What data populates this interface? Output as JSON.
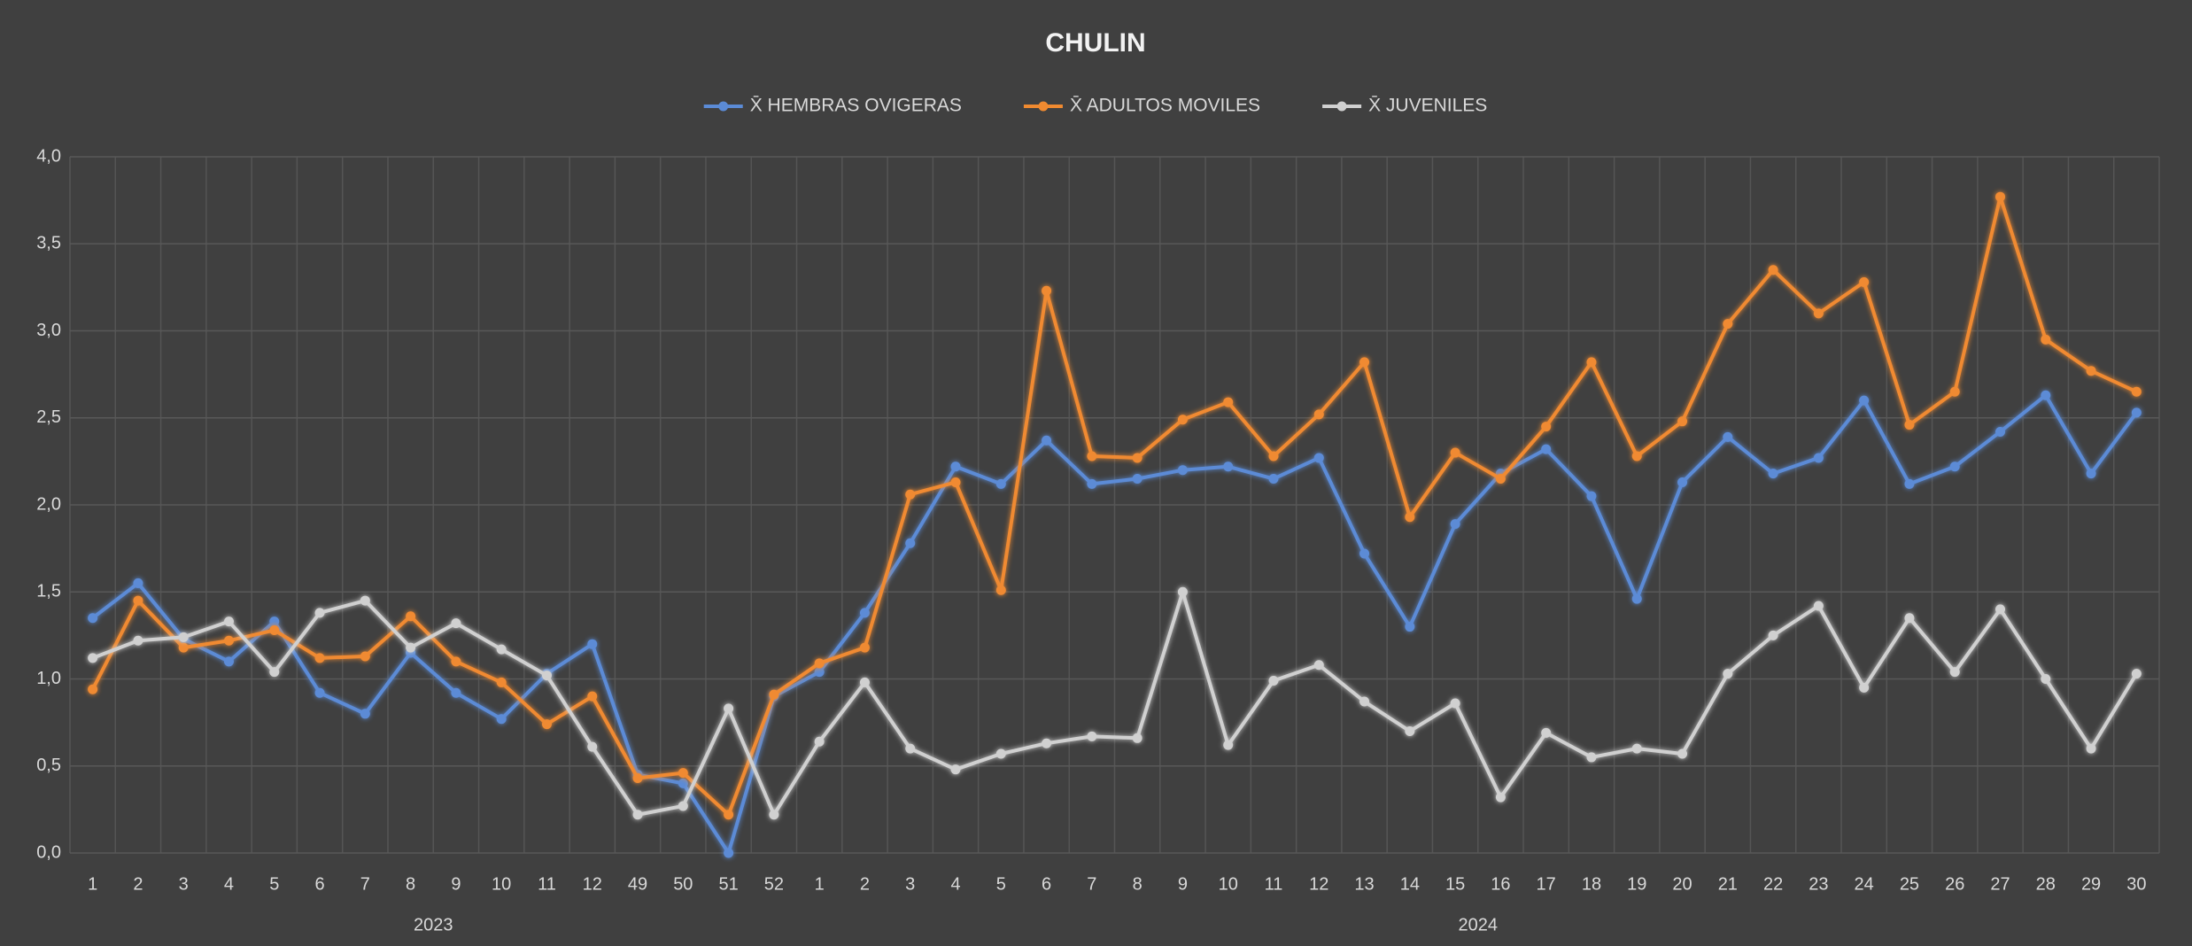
{
  "chart_data": {
    "type": "line",
    "title": "CHULIN",
    "category_groups": [
      {
        "name": "2023",
        "categories": [
          "1",
          "2",
          "3",
          "4",
          "5",
          "6",
          "7",
          "8",
          "9",
          "10",
          "11",
          "12",
          "49",
          "50",
          "51",
          "52"
        ]
      },
      {
        "name": "2024",
        "categories": [
          "1",
          "2",
          "3",
          "4",
          "5",
          "6",
          "7",
          "8",
          "9",
          "10",
          "11",
          "12",
          "13",
          "14",
          "15",
          "16",
          "17",
          "18",
          "19",
          "20",
          "21",
          "22",
          "23",
          "24",
          "25",
          "26",
          "27",
          "28",
          "29",
          "30"
        ]
      }
    ],
    "series": [
      {
        "name": "X̄ HEMBRAS OVIGERAS",
        "color": "#5b8bd6",
        "values": [
          1.35,
          1.55,
          1.23,
          1.1,
          1.33,
          0.92,
          0.8,
          1.15,
          0.92,
          0.77,
          1.03,
          1.2,
          0.45,
          0.4,
          0.0,
          0.9,
          1.04,
          1.38,
          1.78,
          2.22,
          2.12,
          2.37,
          2.12,
          2.15,
          2.2,
          2.22,
          2.15,
          2.27,
          1.72,
          1.3,
          1.89,
          2.18,
          2.32,
          2.05,
          1.46,
          2.13,
          2.39,
          2.18,
          2.27,
          2.6,
          2.12,
          2.22,
          2.42,
          2.63,
          2.18,
          2.53
        ]
      },
      {
        "name": "X̄ ADULTOS MOVILES",
        "color": "#f08a30",
        "values": [
          0.94,
          1.45,
          1.18,
          1.22,
          1.28,
          1.12,
          1.13,
          1.36,
          1.1,
          0.98,
          0.74,
          0.9,
          0.43,
          0.46,
          0.22,
          0.91,
          1.09,
          1.18,
          2.06,
          2.13,
          1.51,
          3.23,
          2.28,
          2.27,
          2.49,
          2.59,
          2.28,
          2.52,
          2.82,
          1.93,
          2.3,
          2.15,
          2.45,
          2.82,
          2.28,
          2.48,
          3.04,
          3.35,
          3.1,
          3.28,
          2.46,
          2.65,
          3.77,
          2.95,
          2.77,
          2.65
        ]
      },
      {
        "name": "X̄ JUVENILES",
        "color": "#d0d0d0",
        "values": [
          1.12,
          1.22,
          1.24,
          1.33,
          1.04,
          1.38,
          1.45,
          1.18,
          1.32,
          1.17,
          1.02,
          0.61,
          0.22,
          0.27,
          0.83,
          0.22,
          0.64,
          0.98,
          0.6,
          0.48,
          0.57,
          0.63,
          0.67,
          0.66,
          1.5,
          0.62,
          0.99,
          1.08,
          0.87,
          0.7,
          0.86,
          0.32,
          0.69,
          0.55,
          0.6,
          0.57,
          1.03,
          1.25,
          1.42,
          0.95,
          1.35,
          1.04,
          1.4,
          1.0,
          0.6,
          1.03
        ]
      }
    ],
    "ylim": [
      0,
      4
    ],
    "yticks": [
      {
        "value": 0,
        "label": "0,0"
      },
      {
        "value": 0.5,
        "label": "0,5"
      },
      {
        "value": 1,
        "label": "1,0"
      },
      {
        "value": 1.5,
        "label": "1,5"
      },
      {
        "value": 2,
        "label": "2,0"
      },
      {
        "value": 2.5,
        "label": "2,5"
      },
      {
        "value": 3,
        "label": "3,0"
      },
      {
        "value": 3.5,
        "label": "3,5"
      },
      {
        "value": 4,
        "label": "4,0"
      }
    ],
    "grid": true,
    "legend": "top"
  }
}
